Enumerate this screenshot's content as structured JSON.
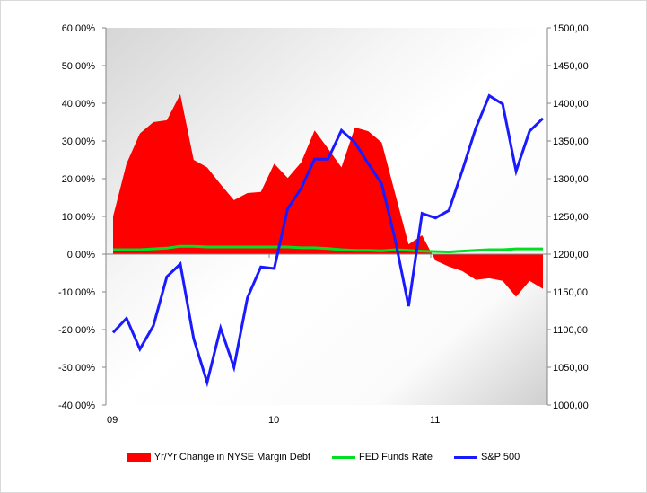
{
  "chart_data": {
    "type": "area+line",
    "title": "",
    "x_tick_labels": [
      "09",
      "10",
      "11"
    ],
    "left_axis": {
      "min": -40,
      "max": 60,
      "step": 10,
      "tick_labels": [
        "60,00%",
        "50,00%",
        "40,00%",
        "30,00%",
        "20,00%",
        "10,00%",
        "0,00%",
        "-10,00%",
        "-20,00%",
        "-30,00%",
        "-40,00%"
      ]
    },
    "right_axis": {
      "min": 1000,
      "max": 1500,
      "step": 50,
      "tick_labels": [
        "1500,00",
        "1450,00",
        "1400,00",
        "1350,00",
        "1300,00",
        "1250,00",
        "1200,00",
        "1150,00",
        "1100,00",
        "1050,00",
        "1000,00"
      ]
    },
    "legend_position": "bottom",
    "grid": false,
    "series": [
      {
        "name": "Yr/Yr Change in NYSE Margin Debt",
        "kind": "area",
        "axis": "left",
        "color": "#ff0000",
        "values": [
          10,
          24,
          32,
          35,
          35.5,
          42.4,
          25,
          23,
          18.5,
          14.3,
          16.2,
          16.5,
          24,
          20.2,
          24.3,
          32.8,
          28,
          23,
          33.6,
          32.6,
          29.6,
          16,
          2.6,
          5,
          -1.7,
          -3.3,
          -4.5,
          -6.8,
          -6.4,
          -7.1,
          -11.3,
          -7.1,
          -9.2
        ]
      },
      {
        "name": "FED Funds Rate",
        "kind": "line",
        "axis": "left",
        "color": "#00e020",
        "values": [
          1.2,
          1.2,
          1.2,
          1.4,
          1.6,
          2.1,
          2.1,
          1.9,
          1.9,
          1.9,
          1.9,
          1.9,
          1.9,
          1.9,
          1.7,
          1.7,
          1.5,
          1.2,
          1.0,
          1.0,
          0.9,
          1.2,
          1.0,
          0.8,
          0.7,
          0.6,
          0.8,
          1.0,
          1.2,
          1.2,
          1.4,
          1.4,
          1.4
        ]
      },
      {
        "name": "S&P 500",
        "kind": "line",
        "axis": "right",
        "color": "#1a1aff",
        "values": [
          1096,
          1115,
          1074,
          1105,
          1170,
          1187,
          1088,
          1030,
          1102,
          1050,
          1142,
          1183,
          1181,
          1260,
          1287,
          1326,
          1326,
          1364,
          1348,
          1320,
          1293,
          1219,
          1131,
          1254,
          1248,
          1258,
          1311,
          1367,
          1410,
          1399,
          1310,
          1363,
          1380
        ]
      }
    ]
  }
}
